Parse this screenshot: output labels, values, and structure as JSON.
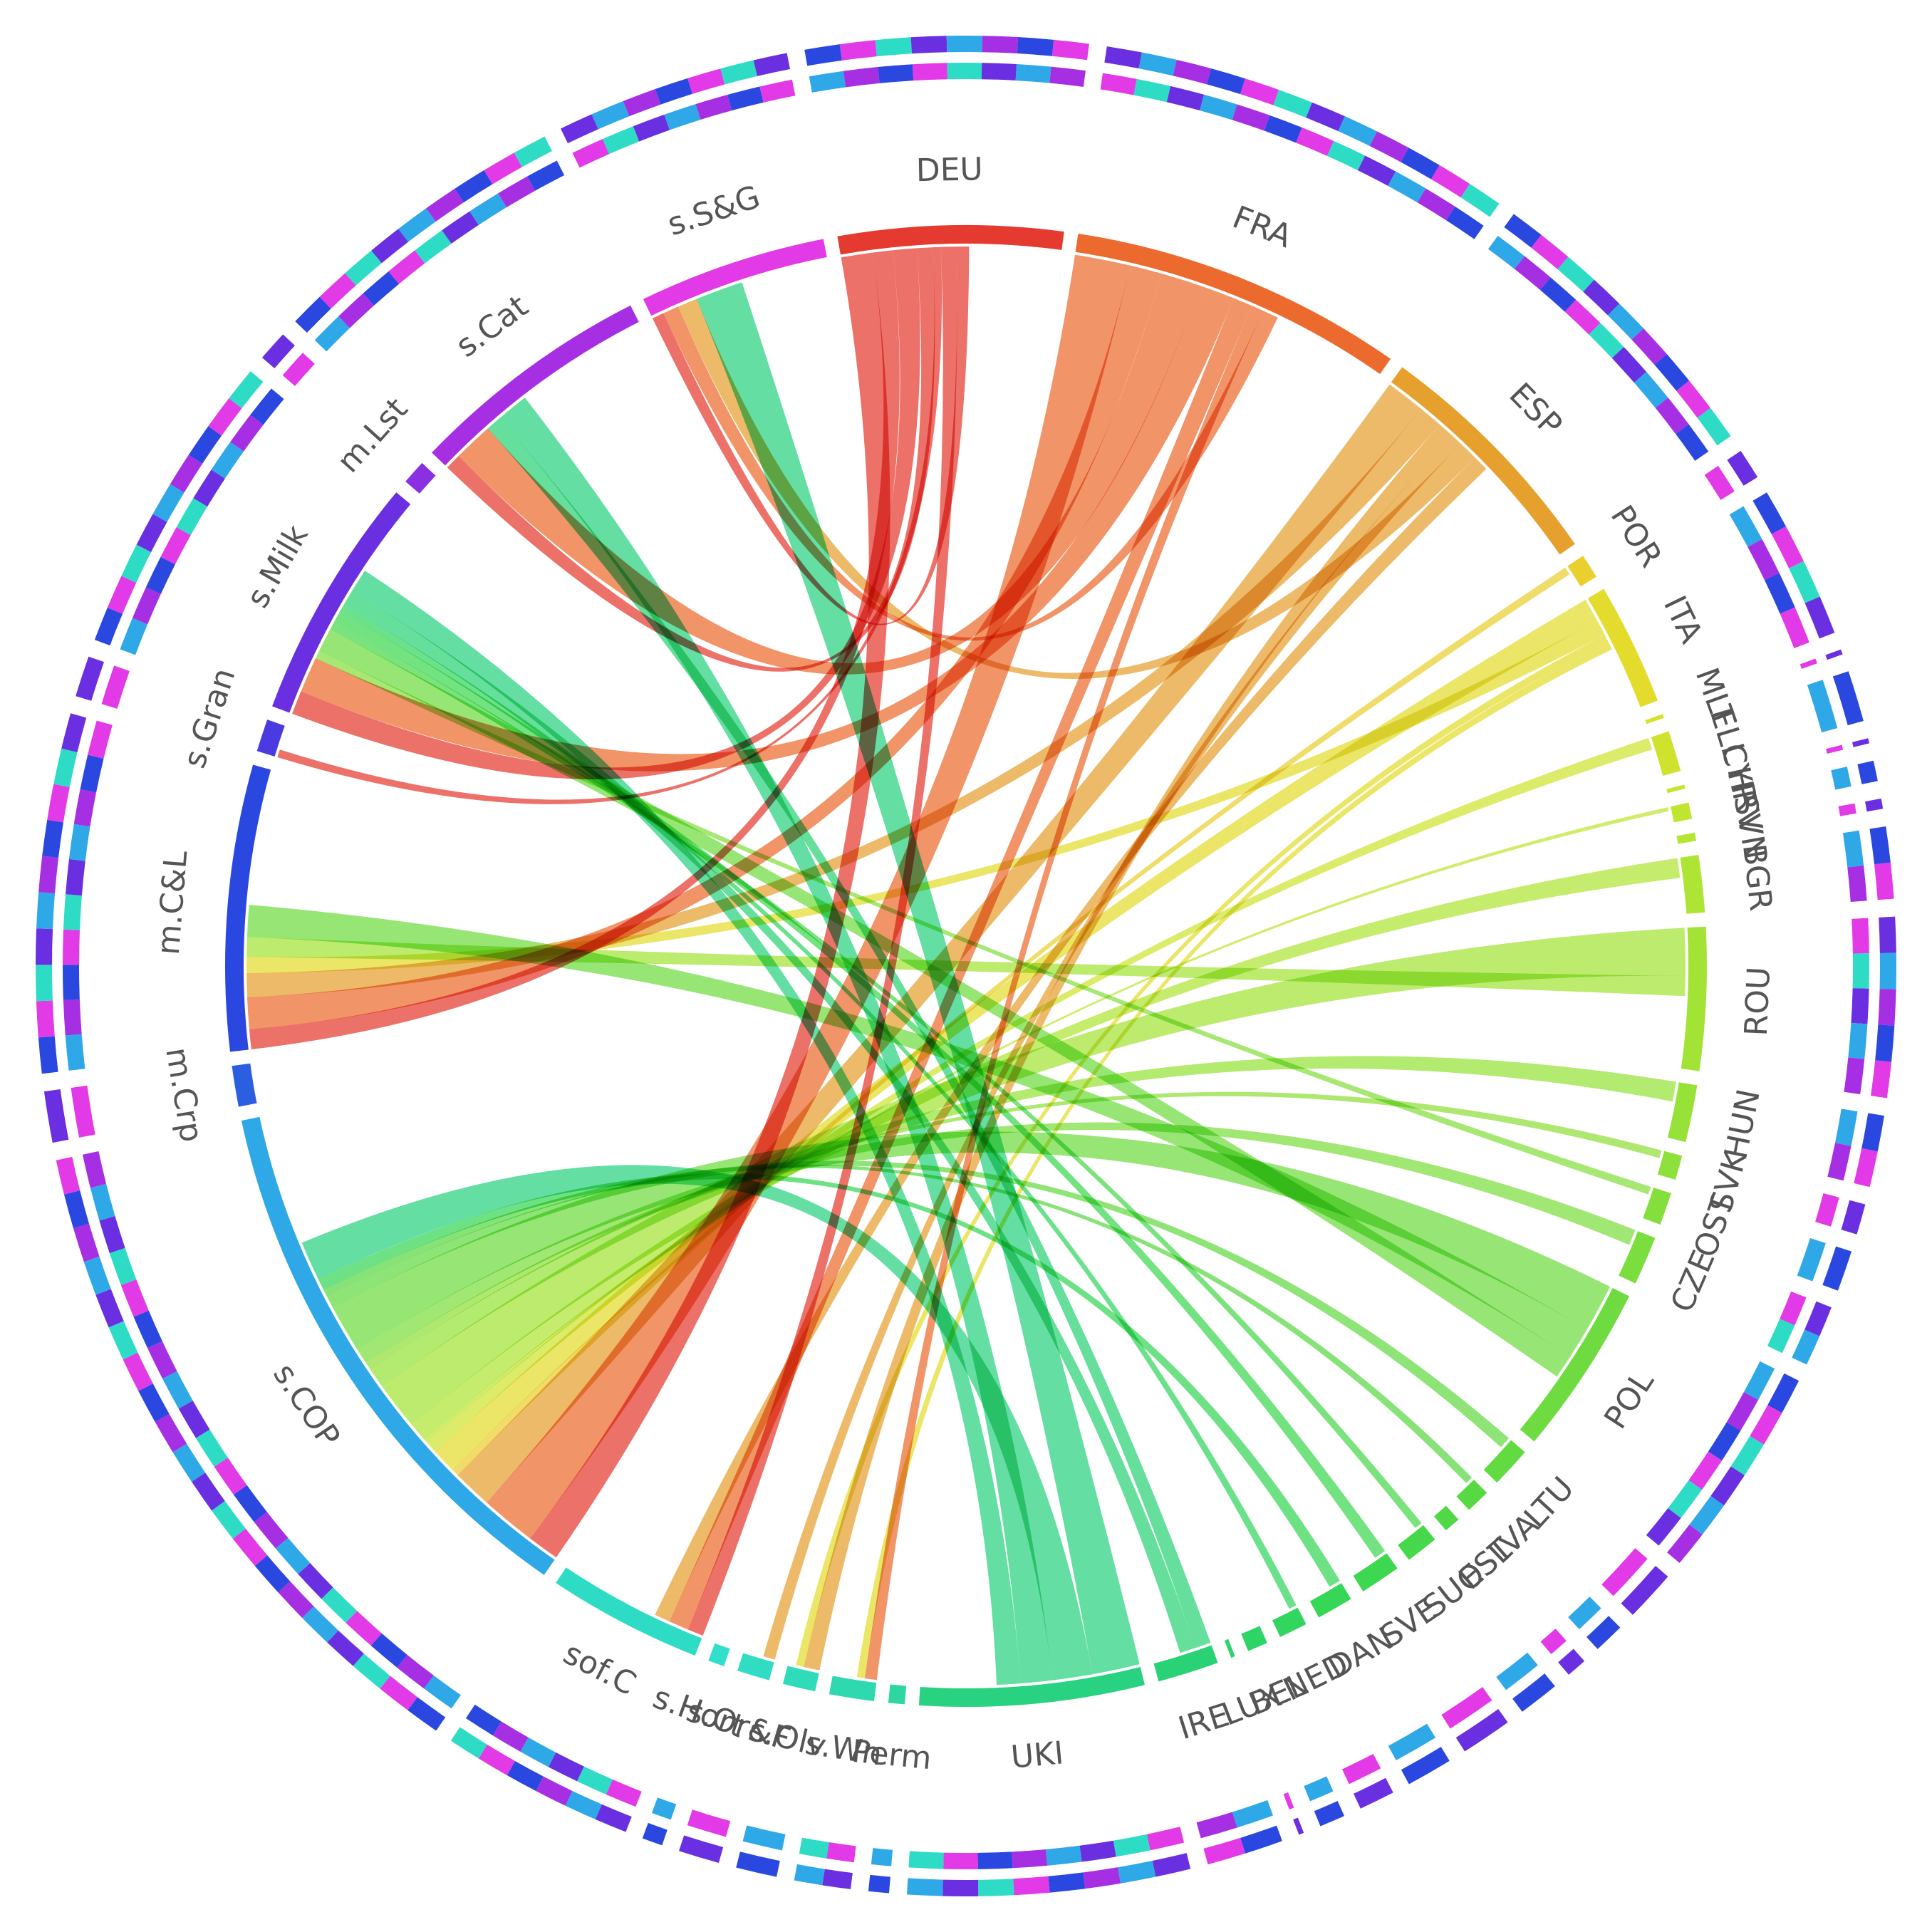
{
  "chart_data": {
    "type": "chord",
    "segments": [
      {
        "label": "DEU",
        "weight": 55,
        "color": "#e53a2f"
      },
      {
        "label": "FRA",
        "weight": 82,
        "color": "#ec6a2d"
      },
      {
        "label": "ESP",
        "weight": 60,
        "color": "#e6a02e"
      },
      {
        "label": "POR",
        "weight": 6,
        "color": "#ead02e"
      },
      {
        "label": "ITA",
        "weight": 30,
        "color": "#e4dc2c"
      },
      {
        "label": "MLT",
        "weight": 1,
        "color": "#d8e22e"
      },
      {
        "label": "ELL",
        "weight": 10,
        "color": "#cfe32e"
      },
      {
        "label": "CYP",
        "weight": 1,
        "color": "#c8e42f"
      },
      {
        "label": "HRV",
        "weight": 4,
        "color": "#bfe530"
      },
      {
        "label": "SVN",
        "weight": 2,
        "color": "#b6e532"
      },
      {
        "label": "BGR",
        "weight": 14,
        "color": "#aee534"
      },
      {
        "label": "ROU",
        "weight": 35,
        "color": "#a2e336"
      },
      {
        "label": "HUN",
        "weight": 14,
        "color": "#96e238"
      },
      {
        "label": "SVK",
        "weight": 6,
        "color": "#8ee03a"
      },
      {
        "label": "OST",
        "weight": 8,
        "color": "#84df3c"
      },
      {
        "label": "CZE",
        "weight": 12,
        "color": "#7cde3e"
      },
      {
        "label": "POL",
        "weight": 42,
        "color": "#6edc40"
      },
      {
        "label": "LTU",
        "weight": 10,
        "color": "#62da42"
      },
      {
        "label": "LVA",
        "weight": 6,
        "color": "#58d944"
      },
      {
        "label": "EST",
        "weight": 4,
        "color": "#50d846"
      },
      {
        "label": "SUO",
        "weight": 8,
        "color": "#46d84a"
      },
      {
        "label": "SVE",
        "weight": 10,
        "color": "#3dd750"
      },
      {
        "label": "DAN",
        "weight": 9,
        "color": "#36d656"
      },
      {
        "label": "NED",
        "weight": 7,
        "color": "#32d55e"
      },
      {
        "label": "BEL",
        "weight": 5,
        "color": "#2ed466"
      },
      {
        "label": "LUX",
        "weight": 1,
        "color": "#2cd36e"
      },
      {
        "label": "IRE",
        "weight": 15,
        "color": "#2ad276"
      },
      {
        "label": "UKI",
        "weight": 55,
        "color": "#28d280"
      },
      {
        "label": "Perm",
        "weight": 4,
        "color": "#2ed6a2"
      },
      {
        "label": "s.Wn",
        "weight": 11,
        "color": "#2fd9b0"
      },
      {
        "label": "s.Olv",
        "weight": 8,
        "color": "#30dbba"
      },
      {
        "label": "s.Or&F",
        "weight": 8,
        "color": "#31ddc2"
      },
      {
        "label": "s.Hort",
        "weight": 4,
        "color": "#32dfcc"
      },
      {
        "label": "sof.C",
        "weight": 38,
        "color": "#2edcc6"
      },
      {
        "label": "s.COP",
        "weight": 135,
        "color": "#2ea8e6"
      },
      {
        "label": "m.Crp",
        "weight": 10,
        "color": "#2c5ee0"
      },
      {
        "label": "m.C&L",
        "weight": 70,
        "color": "#2a48e0"
      },
      {
        "label": "s.Gran",
        "weight": 8,
        "color": "#4a3ae0"
      },
      {
        "label": "s.Milk",
        "weight": 60,
        "color": "#6a2fe0"
      },
      {
        "label": "m.Lst",
        "weight": 6,
        "color": "#8a2fe2"
      },
      {
        "label": "s.Cat",
        "weight": 60,
        "color": "#a62fe4"
      },
      {
        "label": "s.S&G",
        "weight": 46,
        "color": "#e23ae6"
      }
    ],
    "flows": [
      {
        "from": "DEU",
        "to": "s.COP",
        "value": 8
      },
      {
        "from": "DEU",
        "to": "m.C&L",
        "value": 5
      },
      {
        "from": "DEU",
        "to": "s.Milk",
        "value": 6
      },
      {
        "from": "DEU",
        "to": "s.Cat",
        "value": 4
      },
      {
        "from": "DEU",
        "to": "s.Gran",
        "value": 2
      },
      {
        "from": "DEU",
        "to": "sof.C",
        "value": 4
      },
      {
        "from": "DEU",
        "to": "s.S&G",
        "value": 3
      },
      {
        "from": "FRA",
        "to": "s.COP",
        "value": 14
      },
      {
        "from": "FRA",
        "to": "m.C&L",
        "value": 8
      },
      {
        "from": "FRA",
        "to": "s.Cat",
        "value": 10
      },
      {
        "from": "FRA",
        "to": "s.Milk",
        "value": 9
      },
      {
        "from": "FRA",
        "to": "sof.C",
        "value": 5
      },
      {
        "from": "FRA",
        "to": "s.Wn",
        "value": 3
      },
      {
        "from": "FRA",
        "to": "s.S&G",
        "value": 4
      },
      {
        "from": "ESP",
        "to": "s.COP",
        "value": 10
      },
      {
        "from": "ESP",
        "to": "m.C&L",
        "value": 6
      },
      {
        "from": "ESP",
        "to": "s.Olv",
        "value": 4
      },
      {
        "from": "ESP",
        "to": "s.Or&F",
        "value": 3
      },
      {
        "from": "ESP",
        "to": "s.S&G",
        "value": 5
      },
      {
        "from": "ESP",
        "to": "sof.C",
        "value": 4
      },
      {
        "from": "POR",
        "to": "s.COP",
        "value": 2
      },
      {
        "from": "ITA",
        "to": "s.COP",
        "value": 6
      },
      {
        "from": "ITA",
        "to": "m.C&L",
        "value": 4
      },
      {
        "from": "ITA",
        "to": "s.Olv",
        "value": 2
      },
      {
        "from": "ITA",
        "to": "s.Wn",
        "value": 2
      },
      {
        "from": "ELL",
        "to": "s.COP",
        "value": 3
      },
      {
        "from": "HRV",
        "to": "s.COP",
        "value": 1
      },
      {
        "from": "BGR",
        "to": "s.COP",
        "value": 5
      },
      {
        "from": "ROU",
        "to": "s.COP",
        "value": 12
      },
      {
        "from": "ROU",
        "to": "m.C&L",
        "value": 5
      },
      {
        "from": "HUN",
        "to": "s.COP",
        "value": 5
      },
      {
        "from": "SVK",
        "to": "s.COP",
        "value": 2
      },
      {
        "from": "OST",
        "to": "s.Milk",
        "value": 2
      },
      {
        "from": "CZE",
        "to": "s.COP",
        "value": 4
      },
      {
        "from": "POL",
        "to": "s.COP",
        "value": 12
      },
      {
        "from": "POL",
        "to": "m.C&L",
        "value": 8
      },
      {
        "from": "POL",
        "to": "s.Milk",
        "value": 6
      },
      {
        "from": "LTU",
        "to": "s.COP",
        "value": 3
      },
      {
        "from": "LVA",
        "to": "s.COP",
        "value": 2
      },
      {
        "from": "SUO",
        "to": "s.Milk",
        "value": 2
      },
      {
        "from": "SVE",
        "to": "s.Milk",
        "value": 3
      },
      {
        "from": "DAN",
        "to": "s.COP",
        "value": 3
      },
      {
        "from": "NED",
        "to": "s.Milk",
        "value": 2
      },
      {
        "from": "IRE",
        "to": "s.Cat",
        "value": 4
      },
      {
        "from": "IRE",
        "to": "s.Milk",
        "value": 4
      },
      {
        "from": "UKI",
        "to": "s.S&G",
        "value": 12
      },
      {
        "from": "UKI",
        "to": "s.COP",
        "value": 10
      },
      {
        "from": "UKI",
        "to": "s.Cat",
        "value": 8
      },
      {
        "from": "UKI",
        "to": "s.Milk",
        "value": 6
      }
    ]
  }
}
